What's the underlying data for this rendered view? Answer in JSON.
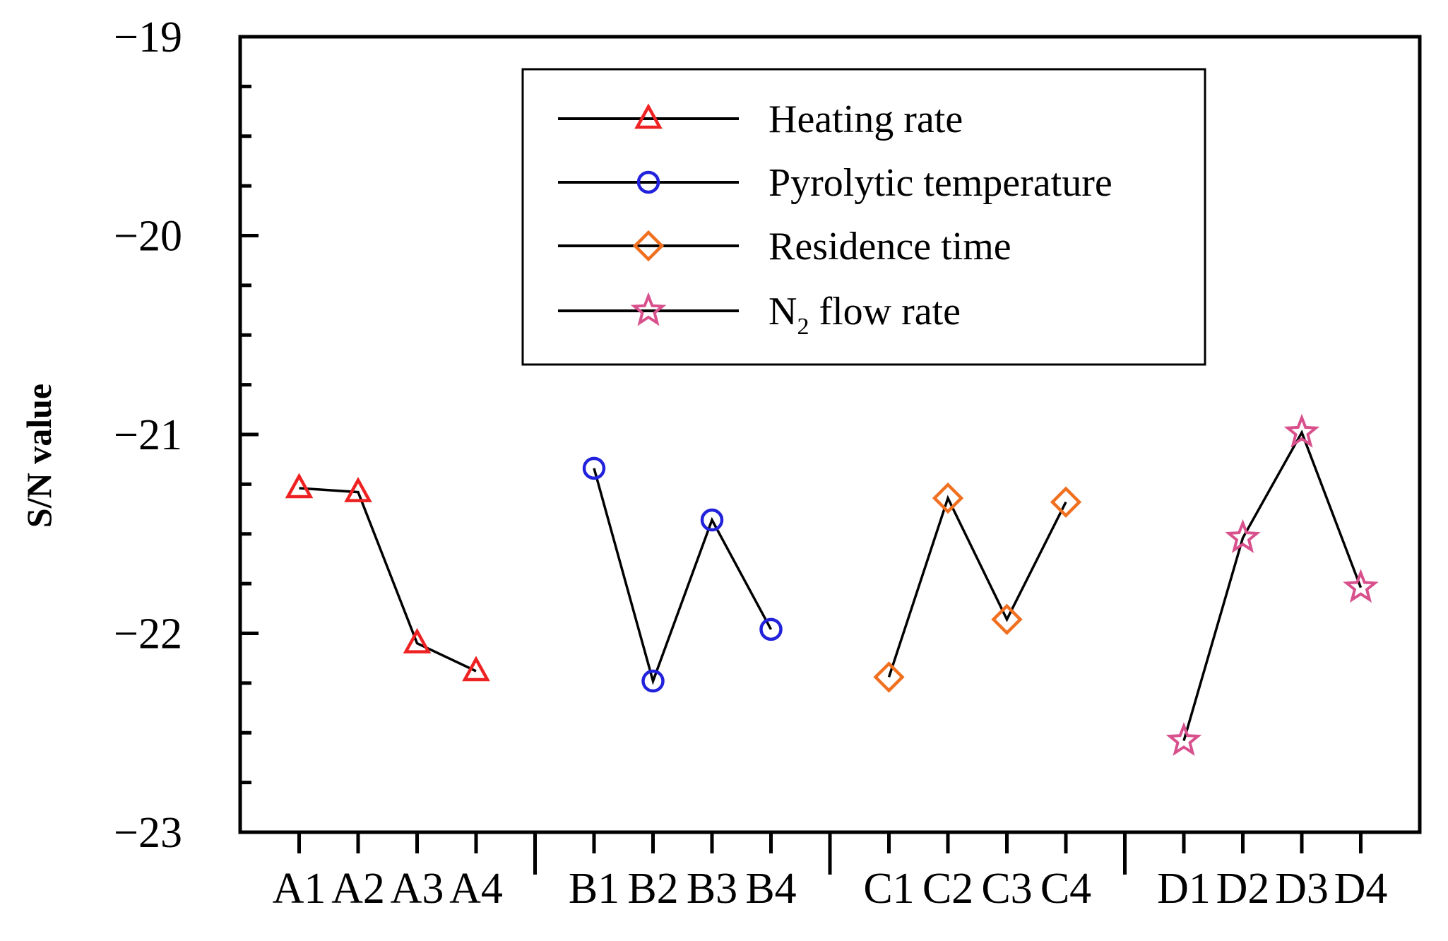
{
  "chart_data": {
    "type": "line",
    "title": "",
    "xlabel": "",
    "ylabel": "S/N value",
    "ylim": [
      -23,
      -19
    ],
    "yticks": [
      -19,
      -20,
      -21,
      -22,
      -23
    ],
    "ytick_labels": [
      "−19",
      "−20",
      "−21",
      "−22",
      "−23"
    ],
    "grid": false,
    "legend_position": "top-center",
    "series": [
      {
        "name": "Heating rate",
        "marker": "triangle",
        "color": "#ee2222",
        "categories": [
          "A1",
          "A2",
          "A3",
          "A4"
        ],
        "values": [
          -21.27,
          -21.29,
          -22.05,
          -22.19
        ]
      },
      {
        "name": "Pyrolytic temperature",
        "marker": "circle",
        "color": "#2222dd",
        "categories": [
          "B1",
          "B2",
          "B3",
          "B4"
        ],
        "values": [
          -21.17,
          -22.24,
          -21.43,
          -21.98
        ]
      },
      {
        "name": "Residence time",
        "marker": "diamond",
        "color": "#f07020",
        "categories": [
          "C1",
          "C2",
          "C3",
          "C4"
        ],
        "values": [
          -22.22,
          -21.32,
          -21.93,
          -21.34
        ]
      },
      {
        "name": "N2 flow rate",
        "label_main": "N",
        "label_sub": "2",
        "label_rest": " flow rate",
        "marker": "star",
        "color": "#d8508c",
        "categories": [
          "D1",
          "D2",
          "D3",
          "D4"
        ],
        "values": [
          -22.54,
          -21.52,
          -20.99,
          -21.77
        ]
      }
    ]
  }
}
